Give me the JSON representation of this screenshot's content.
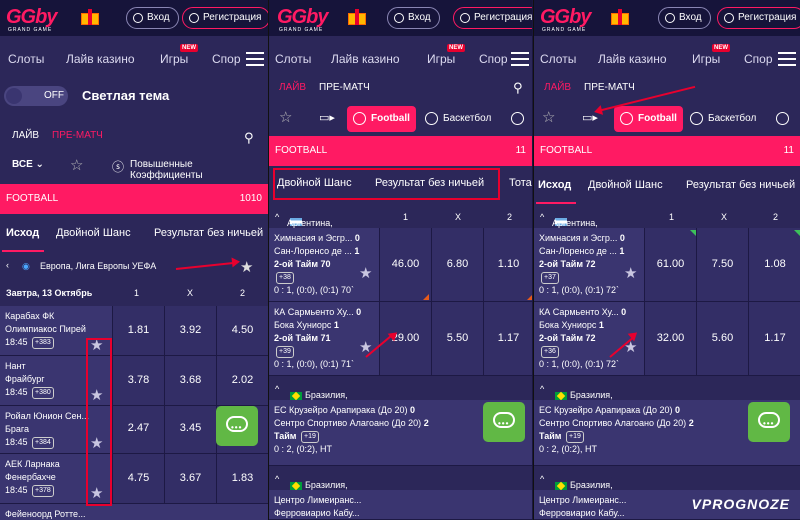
{
  "brand": {
    "logo": "GGby",
    "logo_sub": "GRAND GAME"
  },
  "header": {
    "login": "Вход",
    "register": "Регистрация"
  },
  "nav": {
    "slots": "Слоты",
    "live_casino": "Лайв казино",
    "games": "Игры",
    "new_badge": "NEW",
    "sport_cut1": "Спор",
    "sport_cut2": "Спор"
  },
  "panel1": {
    "toggle_state": "OFF",
    "theme_label": "Светлая тема",
    "live": "ЛАЙВ",
    "prematch": "ПРЕ-МАТЧ",
    "all_select": "ВСЕ",
    "boosted": "Повышенные Коэффициенты",
    "football": "FOOTBALL",
    "football_count": "1010",
    "tabs": [
      "Исход",
      "Двойной Шанс",
      "Результат без ничьей"
    ],
    "league": "Европа, Лига Европы УЕФА",
    "date": "Завтра, 13 Октябрь",
    "cols": [
      "1",
      "X",
      "2"
    ],
    "matches": [
      {
        "t1": "Карабах ФК",
        "t2": "Олимпиакос Пирей",
        "time": "18:45",
        "more": "+383",
        "o1": "1.81",
        "ox": "3.92",
        "o2": "4.50"
      },
      {
        "t1": "Нант",
        "t2": "Фрайбург",
        "time": "18:45",
        "more": "+380",
        "o1": "3.78",
        "ox": "3.68",
        "o2": "2.02"
      },
      {
        "t1": "Ройал Юнион Сен...",
        "t2": "Брага",
        "time": "18:45",
        "more": "+384",
        "o1": "2.47",
        "ox": "3.45",
        "o2": ""
      },
      {
        "t1": "АЕК Ларнака",
        "t2": "Фенербахче",
        "time": "18:45",
        "more": "+378",
        "o1": "4.75",
        "ox": "3.67",
        "o2": "1.83"
      },
      {
        "t1": "Фейеноорд Ротте...",
        "t2": "",
        "time": "",
        "more": "",
        "o1": "",
        "ox": "",
        "o2": ""
      }
    ]
  },
  "panel2": {
    "live": "ЛАЙВ",
    "prematch": "ПРЕ-МАТЧ",
    "sports": [
      "Football",
      "Баскетбол"
    ],
    "football": "FOOTBALL",
    "football_count": "11",
    "tabs": [
      "Двойной Шанс",
      "Результат без ничьей",
      "Тота"
    ],
    "league1": "Аргентина, ...",
    "league2": "Бразилия, Чемпионат Алагоа...",
    "league3": "Бразилия, Чемпионат Перн...",
    "cols": [
      "1",
      "X",
      "2"
    ],
    "matches": [
      {
        "t1": "Химнасия и Эсгр...",
        "s1": "0",
        "t2": "Сан-Лоренсо де ...",
        "s2": "1",
        "period": "2-ой Тайм 70",
        "more": "+38",
        "score": "0 : 1, (0:0), (0:1) 70`",
        "o1": "46.00",
        "ox": "6.80",
        "o2": "1.10"
      },
      {
        "t1": "КА Сармьенто Ху...",
        "s1": "0",
        "t2": "Бока Хуниорс",
        "s2": "1",
        "period": "2-ой Тайм 71",
        "more": "+39",
        "score": "0 : 1, (0:0), (0:1) 71`",
        "o1": "29.00",
        "ox": "5.50",
        "o2": "1.17"
      },
      {
        "t1": "ЕС Крузейро Арапирака (До 20)",
        "s1": "0",
        "t2": "Сентро Спортиво Алагоано (До 20)",
        "s2": "2",
        "period": "Тайм",
        "more": "+19",
        "score": "0 : 2, (0:2), НТ"
      },
      {
        "t1": "Центро Лимеиранс...",
        "s1": "",
        "t2": "Ферровиарио Кабу...",
        "s2": ""
      }
    ]
  },
  "panel3": {
    "live": "ЛАЙВ",
    "prematch": "ПРЕ-МАТЧ",
    "sports": [
      "Football",
      "Баскетбол"
    ],
    "football": "FOOTBALL",
    "football_count": "11",
    "tabs": [
      "Исход",
      "Двойной Шанс",
      "Результат без ничьей"
    ],
    "league1": "Аргентина, ...",
    "league2": "Бразилия, Чемпионат Алагоа...",
    "league3": "Бразилия, Чемпионат Перн...",
    "cols": [
      "1",
      "X",
      "2"
    ],
    "matches": [
      {
        "t1": "Химнасия и Эсгр...",
        "s1": "0",
        "t2": "Сан-Лоренсо де ...",
        "s2": "1",
        "period": "2-ой Тайм 72",
        "more": "+37",
        "score": "0 : 1, (0:0), (0:1) 72`",
        "o1": "61.00",
        "ox": "7.50",
        "o2": "1.08"
      },
      {
        "t1": "КА Сармьенто Ху...",
        "s1": "0",
        "t2": "Бока Хуниорс",
        "s2": "1",
        "period": "2-ой Тайм 72",
        "more": "+36",
        "score": "0 : 1, (0:0), (0:1) 72`",
        "o1": "32.00",
        "ox": "5.60",
        "o2": "1.17"
      },
      {
        "t1": "ЕС Крузейро Арапирака (До 20)",
        "s1": "0",
        "t2": "Сентро Спортиво Алагоано (До 20)",
        "s2": "2",
        "period": "Тайм",
        "more": "+19",
        "score": "0 : 2, (0:2), НТ"
      },
      {
        "t1": "Центро Лимеиранс...",
        "s1": "",
        "t2": "Ферровиарио Кабу...",
        "s2": ""
      }
    ]
  },
  "chat_label": "•••",
  "watermark": "VPROGNOZE"
}
